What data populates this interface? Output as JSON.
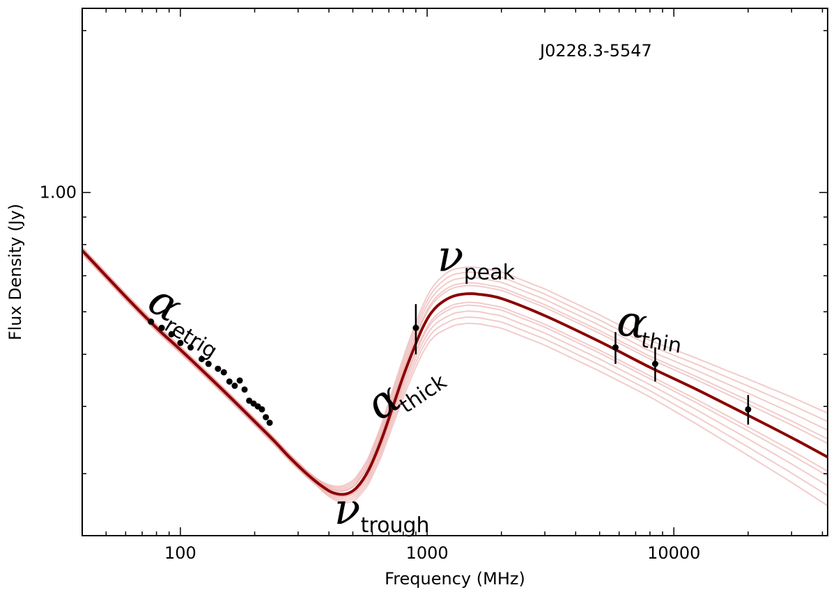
{
  "chart_data": {
    "type": "scatter",
    "title": "",
    "source_label": "J0228.3-5547",
    "xlabel": "Frequency (MHz)",
    "ylabel": "Flux Density (Jy)",
    "xscale": "log",
    "yscale": "log",
    "xlim": [
      40,
      42000
    ],
    "ylim": [
      0.23,
      2.2
    ],
    "x_ticks": [
      100,
      1000,
      10000
    ],
    "x_tick_labels": [
      "100",
      "1000",
      "10000"
    ],
    "y_ticks": [
      1.0
    ],
    "y_tick_labels": [
      "1.00"
    ],
    "grid": false,
    "legend": "none",
    "colors": {
      "best_fit": "#8b0000",
      "samples": "#e8a0a0",
      "points": "#000000"
    },
    "model": {
      "name": "best_fit",
      "x": [
        40,
        60,
        80,
        100,
        130,
        160,
        200,
        240,
        280,
        330,
        380,
        420,
        470,
        520,
        580,
        650,
        720,
        800,
        880,
        950,
        1020,
        1100,
        1200,
        1300,
        1450,
        1600,
        2000,
        3000,
        5000,
        8000,
        12000,
        20000,
        30000,
        42000
      ],
      "y": [
        0.78,
        0.64,
        0.56,
        0.51,
        0.455,
        0.415,
        0.375,
        0.345,
        0.32,
        0.298,
        0.283,
        0.276,
        0.275,
        0.283,
        0.305,
        0.345,
        0.395,
        0.455,
        0.51,
        0.555,
        0.59,
        0.615,
        0.633,
        0.643,
        0.648,
        0.647,
        0.635,
        0.59,
        0.528,
        0.473,
        0.433,
        0.385,
        0.35,
        0.322
      ]
    },
    "sample_spread": [
      0.97,
      1.03,
      0.94,
      1.06,
      0.92,
      1.08,
      0.96,
      1.04,
      0.9,
      1.1
    ],
    "points": [
      {
        "x": 76,
        "y": 0.575
      },
      {
        "x": 84,
        "y": 0.56
      },
      {
        "x": 92,
        "y": 0.545
      },
      {
        "x": 100,
        "y": 0.525
      },
      {
        "x": 110,
        "y": 0.515
      },
      {
        "x": 122,
        "y": 0.49
      },
      {
        "x": 130,
        "y": 0.48
      },
      {
        "x": 142,
        "y": 0.47
      },
      {
        "x": 150,
        "y": 0.463
      },
      {
        "x": 158,
        "y": 0.445
      },
      {
        "x": 166,
        "y": 0.437
      },
      {
        "x": 174,
        "y": 0.447
      },
      {
        "x": 182,
        "y": 0.43
      },
      {
        "x": 190,
        "y": 0.41
      },
      {
        "x": 198,
        "y": 0.405
      },
      {
        "x": 206,
        "y": 0.4
      },
      {
        "x": 214,
        "y": 0.395
      },
      {
        "x": 222,
        "y": 0.382
      },
      {
        "x": 230,
        "y": 0.373
      }
    ],
    "error_points": [
      {
        "x": 900,
        "y": 0.56,
        "err": 0.06
      },
      {
        "x": 5800,
        "y": 0.515,
        "err": 0.035
      },
      {
        "x": 8400,
        "y": 0.48,
        "err": 0.035
      },
      {
        "x": 20000,
        "y": 0.395,
        "err": 0.025
      }
    ],
    "annotations": [
      {
        "id": "alpha-retrig",
        "main": "α",
        "sub": "retrig",
        "x": 72,
        "y": 0.61,
        "rotate": 32
      },
      {
        "id": "alpha-thick",
        "main": "α",
        "sub": "thick",
        "x": 640,
        "y": 0.375,
        "rotate": -34
      },
      {
        "id": "nu-trough",
        "main": "ν",
        "sub": "trough",
        "x": 420,
        "y": 0.242,
        "rotate": 0
      },
      {
        "id": "nu-peak",
        "main": "ν",
        "sub": "peak",
        "x": 1100,
        "y": 0.715,
        "rotate": 0
      },
      {
        "id": "alpha-thin",
        "main": "α",
        "sub": "thin",
        "x": 5800,
        "y": 0.545,
        "rotate": 9
      }
    ]
  }
}
